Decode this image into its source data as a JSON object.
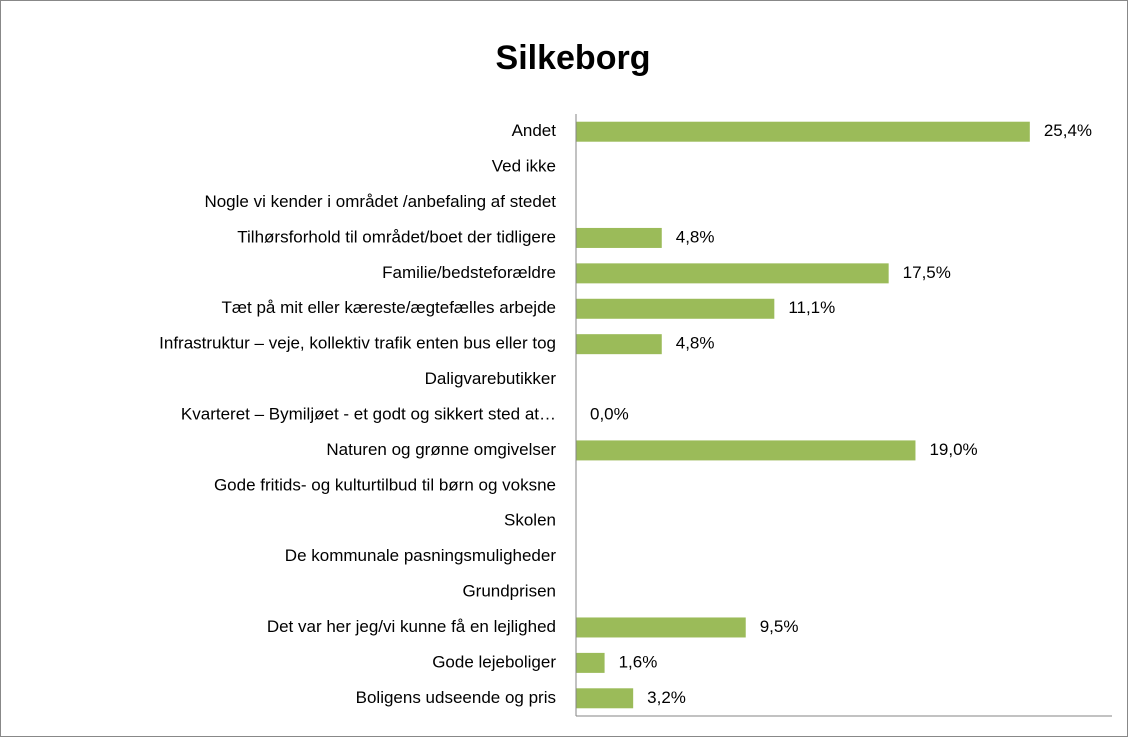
{
  "chart_data": {
    "type": "barh",
    "title": "Silkeborg",
    "categories": [
      "Andet",
      "Ved ikke",
      "Nogle vi kender i området /anbefaling af stedet",
      "Tilhørsforhold til området/boet der tidligere",
      "Familie/bedsteforældre",
      "Tæt på mit eller kæreste/ægtefælles arbejde",
      "Infrastruktur – veje, kollektiv trafik enten bus eller tog",
      "Daligvarebutikker",
      "Kvarteret – Bymiljøet  -  et godt og sikkert sted at…",
      "Naturen og grønne omgivelser",
      "Gode fritids- og kulturtilbud til børn og voksne",
      "Skolen",
      "De kommunale pasningsmuligheder",
      "Grundprisen",
      "Det var her jeg/vi kunne få en lejlighed",
      "Gode lejeboliger",
      "Boligens udseende og pris"
    ],
    "values": [
      25.4,
      null,
      null,
      4.8,
      17.5,
      11.1,
      4.8,
      null,
      0.0,
      19.0,
      null,
      null,
      null,
      null,
      9.5,
      1.6,
      3.2
    ],
    "value_labels": [
      "25,4%",
      null,
      null,
      "4,8%",
      "17,5%",
      "11,1%",
      "4,8%",
      null,
      "0,0%",
      "19,0%",
      null,
      null,
      null,
      null,
      "9,5%",
      "1,6%",
      "3,2%"
    ],
    "color": "#9bbb59",
    "xlim": [
      0,
      30
    ]
  }
}
